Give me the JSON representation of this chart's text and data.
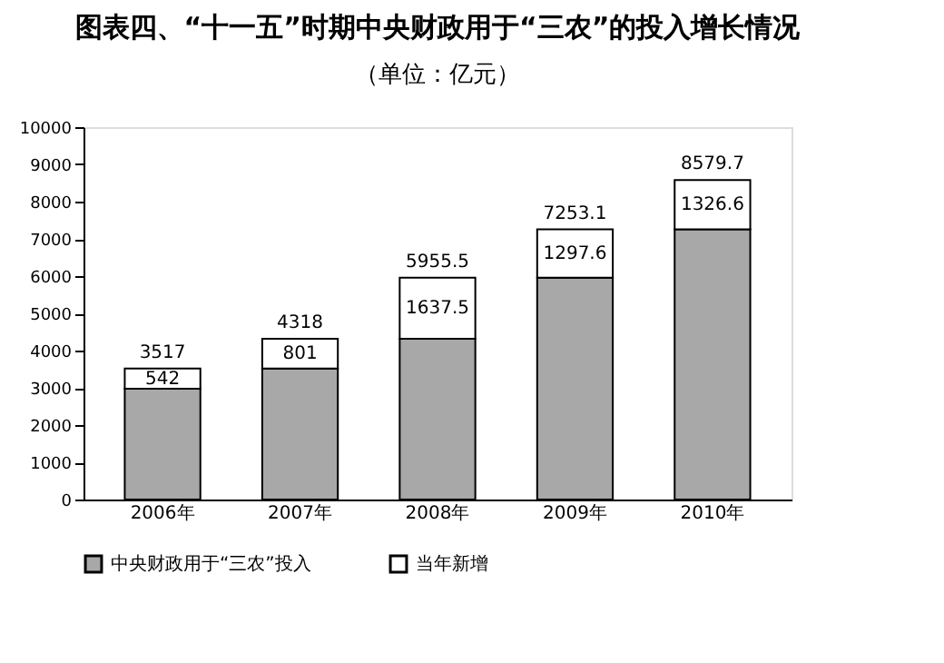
{
  "chart_data": {
    "type": "bar",
    "title": "图表四、“十一五”时期中央财政用于“三农”的投入增长情况",
    "subtitle": "（单位：亿元）",
    "categories": [
      "2006年",
      "2007年",
      "2008年",
      "2009年",
      "2010年"
    ],
    "stacked": true,
    "series": [
      {
        "name": "中央财政用于“三农”投入",
        "color": "#a8a8a8",
        "values": [
          2975,
          3517,
          4318,
          5955.5,
          7253.1
        ]
      },
      {
        "name": "当年新增",
        "color": "#ffffff",
        "values": [
          542,
          801,
          1637.5,
          1297.6,
          1326.6
        ],
        "value_labels": [
          "542",
          "801",
          "1637.5",
          "1297.6",
          "1326.6"
        ]
      }
    ],
    "totals": [
      "3517",
      "4318",
      "5955.5",
      "7253.1",
      "8579.7"
    ],
    "ylim": [
      0,
      10000
    ],
    "yticks": [
      0,
      1000,
      2000,
      3000,
      4000,
      5000,
      6000,
      7000,
      8000,
      9000,
      10000
    ],
    "grid": false,
    "legend": "bottom"
  }
}
